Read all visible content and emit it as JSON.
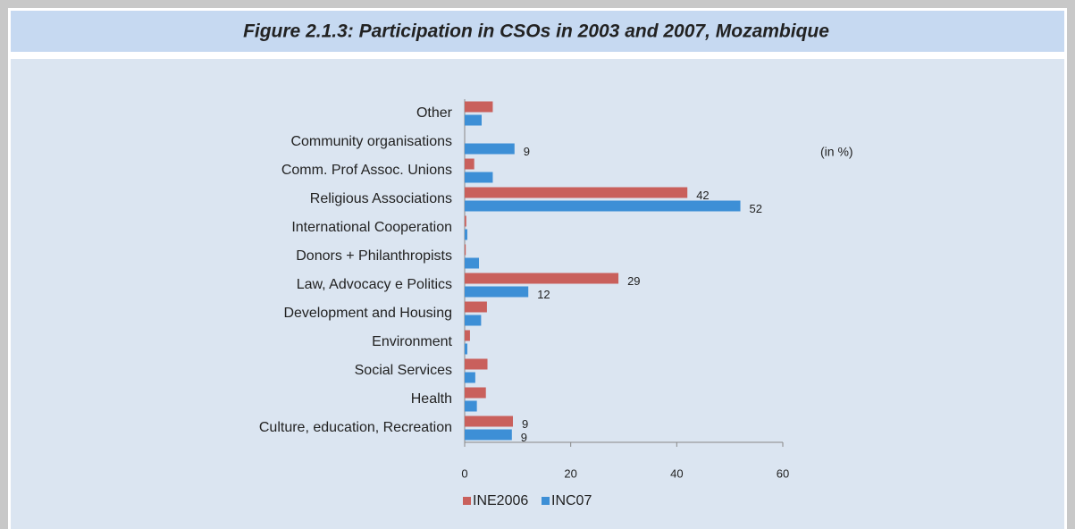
{
  "chart_data": {
    "type": "bar",
    "orientation": "horizontal",
    "title": "Figure 2.1.3: Participation in CSOs in 2003 and 2007, Mozambique",
    "annotation": "(in %)",
    "categories": [
      "Other",
      "Community  organisations",
      "Comm. Prof Assoc. Unions",
      "Religious Associations",
      "International Cooperation",
      "Donors + Philanthropists",
      "Law, Advocacy e Politics",
      "Development and Housing",
      "Environment",
      "Social Services",
      "Health",
      "Culture, education, Recreation"
    ],
    "series": [
      {
        "name": "INE2006",
        "color": "#c9605c",
        "values": [
          5.3,
          null,
          1.8,
          42,
          0.3,
          0.2,
          29,
          4.2,
          1,
          4.3,
          4,
          9.1
        ],
        "value_labels": [
          null,
          null,
          null,
          "42",
          null,
          null,
          "29",
          null,
          null,
          null,
          null,
          "9"
        ]
      },
      {
        "name": "INC07",
        "color": "#3d8fd6",
        "values": [
          3.2,
          9.4,
          5.3,
          52,
          0.5,
          2.7,
          12,
          3.1,
          0.5,
          2,
          2.3,
          8.9
        ],
        "value_labels": [
          null,
          "9",
          null,
          "52",
          null,
          null,
          "12",
          null,
          null,
          null,
          null,
          "9"
        ]
      }
    ],
    "xlim": [
      0,
      60
    ],
    "xticks": [
      0,
      20,
      40,
      60
    ],
    "legend": "bottom"
  }
}
